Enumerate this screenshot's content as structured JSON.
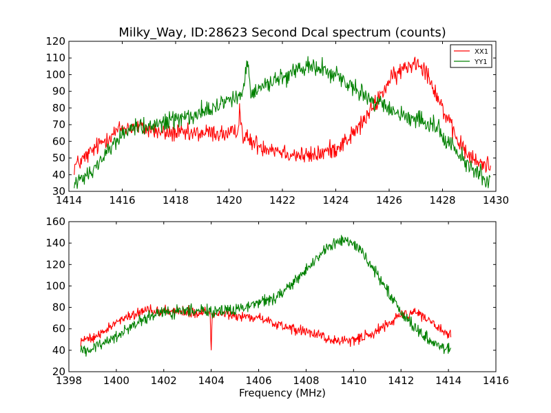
{
  "figure": {
    "title": "Milky_Way, ID:28623 Second Dcal spectrum (counts)"
  },
  "chart_data": [
    {
      "type": "line",
      "title": "Milky_Way, ID:28623 Second Dcal spectrum (counts)",
      "xlabel": "",
      "ylabel": "",
      "xlim": [
        1414,
        1430
      ],
      "ylim": [
        30,
        120
      ],
      "xticks": [
        1414,
        1416,
        1418,
        1420,
        1422,
        1424,
        1426,
        1428,
        1430
      ],
      "yticks": [
        30,
        40,
        50,
        60,
        70,
        80,
        90,
        100,
        110,
        120
      ],
      "grid": false,
      "legend": "top-right",
      "series": [
        {
          "name": "XX1",
          "color": "#ff0000",
          "noise": 4,
          "points": [
            [
              1414.2,
              45
            ],
            [
              1414.6,
              50
            ],
            [
              1415.0,
              56
            ],
            [
              1415.5,
              63
            ],
            [
              1416.0,
              68
            ],
            [
              1416.5,
              69
            ],
            [
              1417.0,
              67
            ],
            [
              1417.5,
              65
            ],
            [
              1418.0,
              65
            ],
            [
              1418.5,
              64
            ],
            [
              1419.0,
              65
            ],
            [
              1419.5,
              65
            ],
            [
              1420.0,
              64
            ],
            [
              1420.3,
              65
            ],
            [
              1420.4,
              80
            ],
            [
              1420.5,
              64
            ],
            [
              1420.8,
              60
            ],
            [
              1421.2,
              57
            ],
            [
              1421.6,
              56
            ],
            [
              1422.0,
              54
            ],
            [
              1422.5,
              52
            ],
            [
              1423.0,
              51
            ],
            [
              1423.5,
              53
            ],
            [
              1424.0,
              56
            ],
            [
              1424.5,
              62
            ],
            [
              1425.0,
              71
            ],
            [
              1425.5,
              83
            ],
            [
              1426.0,
              96
            ],
            [
              1426.5,
              103
            ],
            [
              1427.0,
              108
            ],
            [
              1427.3,
              105
            ],
            [
              1427.6,
              95
            ],
            [
              1428.0,
              80
            ],
            [
              1428.4,
              65
            ],
            [
              1428.8,
              55
            ],
            [
              1429.2,
              48
            ],
            [
              1429.6,
              46
            ],
            [
              1429.8,
              46
            ]
          ]
        },
        {
          "name": "YY1",
          "color": "#008000",
          "noise": 4,
          "points": [
            [
              1414.2,
              36
            ],
            [
              1414.6,
              38
            ],
            [
              1415.0,
              45
            ],
            [
              1415.5,
              56
            ],
            [
              1416.0,
              64
            ],
            [
              1416.5,
              69
            ],
            [
              1417.0,
              70
            ],
            [
              1417.5,
              71
            ],
            [
              1418.0,
              73
            ],
            [
              1418.5,
              75
            ],
            [
              1419.0,
              78
            ],
            [
              1419.5,
              81
            ],
            [
              1420.0,
              85
            ],
            [
              1420.5,
              89
            ],
            [
              1420.7,
              108
            ],
            [
              1420.8,
              90
            ],
            [
              1421.0,
              91
            ],
            [
              1421.5,
              95
            ],
            [
              1422.0,
              99
            ],
            [
              1422.5,
              103
            ],
            [
              1423.0,
              105
            ],
            [
              1423.5,
              104
            ],
            [
              1424.0,
              99
            ],
            [
              1424.5,
              94
            ],
            [
              1425.0,
              88
            ],
            [
              1425.5,
              83
            ],
            [
              1426.0,
              79
            ],
            [
              1426.5,
              76
            ],
            [
              1427.0,
              73
            ],
            [
              1427.5,
              70
            ],
            [
              1428.0,
              64
            ],
            [
              1428.5,
              55
            ],
            [
              1429.0,
              46
            ],
            [
              1429.4,
              40
            ],
            [
              1429.8,
              36
            ]
          ]
        }
      ]
    },
    {
      "type": "line",
      "title": "",
      "xlabel": "Frequency (MHz)",
      "ylabel": "",
      "xlim": [
        1398,
        1416
      ],
      "ylim": [
        20,
        160
      ],
      "xticks": [
        1398,
        1400,
        1402,
        1404,
        1406,
        1408,
        1410,
        1412,
        1414,
        1416
      ],
      "yticks": [
        20,
        40,
        60,
        80,
        100,
        120,
        140,
        160
      ],
      "grid": false,
      "legend": "none",
      "series": [
        {
          "name": "XX1",
          "color": "#ff0000",
          "noise": 3.5,
          "points": [
            [
              1398.5,
              50
            ],
            [
              1399.0,
              52
            ],
            [
              1399.5,
              58
            ],
            [
              1400.0,
              66
            ],
            [
              1400.5,
              72
            ],
            [
              1401.0,
              76
            ],
            [
              1401.5,
              77
            ],
            [
              1402.0,
              77
            ],
            [
              1402.5,
              76
            ],
            [
              1403.0,
              76
            ],
            [
              1403.5,
              75
            ],
            [
              1403.95,
              75
            ],
            [
              1404.0,
              40
            ],
            [
              1404.05,
              74
            ],
            [
              1404.5,
              74
            ],
            [
              1405.0,
              73
            ],
            [
              1405.5,
              72
            ],
            [
              1406.0,
              70
            ],
            [
              1406.5,
              67
            ],
            [
              1407.0,
              63
            ],
            [
              1407.5,
              60
            ],
            [
              1408.0,
              57
            ],
            [
              1408.5,
              54
            ],
            [
              1409.0,
              50
            ],
            [
              1409.5,
              48
            ],
            [
              1410.0,
              49
            ],
            [
              1410.5,
              53
            ],
            [
              1411.0,
              58
            ],
            [
              1411.5,
              65
            ],
            [
              1412.0,
              73
            ],
            [
              1412.5,
              76
            ],
            [
              1413.0,
              72
            ],
            [
              1413.5,
              63
            ],
            [
              1414.1,
              53
            ]
          ]
        },
        {
          "name": "YY1",
          "color": "#008000",
          "noise": 4,
          "points": [
            [
              1398.5,
              39
            ],
            [
              1399.0,
              42
            ],
            [
              1399.5,
              47
            ],
            [
              1400.0,
              53
            ],
            [
              1400.5,
              61
            ],
            [
              1401.0,
              67
            ],
            [
              1401.5,
              72
            ],
            [
              1402.0,
              75
            ],
            [
              1402.5,
              76
            ],
            [
              1403.0,
              77
            ],
            [
              1403.5,
              77
            ],
            [
              1404.0,
              76
            ],
            [
              1404.5,
              77
            ],
            [
              1405.0,
              78
            ],
            [
              1405.5,
              80
            ],
            [
              1406.0,
              84
            ],
            [
              1406.5,
              88
            ],
            [
              1407.0,
              94
            ],
            [
              1407.5,
              104
            ],
            [
              1408.0,
              116
            ],
            [
              1408.5,
              127
            ],
            [
              1409.0,
              136
            ],
            [
              1409.5,
              143
            ],
            [
              1410.0,
              140
            ],
            [
              1410.5,
              127
            ],
            [
              1411.0,
              110
            ],
            [
              1411.5,
              92
            ],
            [
              1412.0,
              75
            ],
            [
              1412.5,
              63
            ],
            [
              1413.0,
              53
            ],
            [
              1413.5,
              45
            ],
            [
              1414.1,
              40
            ]
          ]
        }
      ]
    }
  ]
}
